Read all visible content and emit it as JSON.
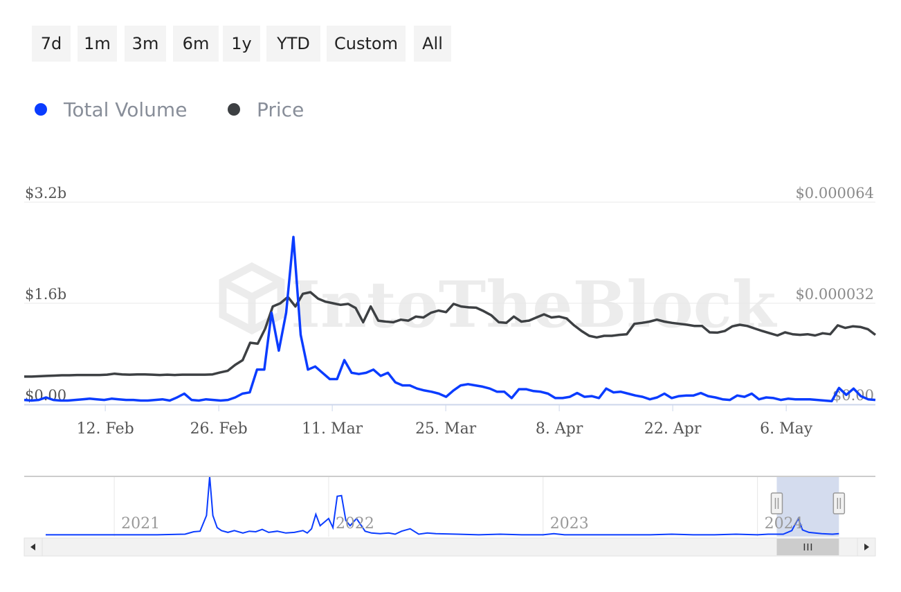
{
  "range_selector": {
    "buttons": [
      "7d",
      "1m",
      "3m",
      "6m",
      "1y",
      "YTD",
      "Custom",
      "All"
    ]
  },
  "legend": [
    {
      "label": "Total Volume",
      "color": "#0a3cff"
    },
    {
      "label": "Price",
      "color": "#3d4043"
    }
  ],
  "watermark": "IntoTheBlock",
  "colors": {
    "volume": "#0a3cff",
    "price": "#3d4043",
    "grid": "#e8e8e8",
    "axis_text": "#555555",
    "right_axis_text": "#8a8a8a",
    "navigator_mask": "#ccd6eb"
  },
  "chart_data": [
    {
      "type": "line",
      "title": "",
      "x": "daily dates, 2024-02-02 to 2024-05-17",
      "x_tick_labels": [
        "12. Feb",
        "26. Feb",
        "11. Mar",
        "25. Mar",
        "8. Apr",
        "22. Apr",
        "6. May"
      ],
      "x_tick_dates": [
        "2024-02-12",
        "2024-02-26",
        "2024-03-11",
        "2024-03-25",
        "2024-04-08",
        "2024-04-22",
        "2024-05-06"
      ],
      "x_range": [
        "2024-02-02",
        "2024-05-17"
      ],
      "y_left": {
        "tick_labels": [
          "$0.00",
          "$1.6b",
          "$3.2b"
        ],
        "range": [
          0,
          3.2
        ],
        "unit": "billion USD"
      },
      "y_right": {
        "tick_labels": [
          "$0.00",
          "$0.000032",
          "$0.000064"
        ],
        "range": [
          0,
          6.4e-05
        ]
      },
      "grid": true,
      "legend_placement": "top-left",
      "series": [
        {
          "name": "Total Volume",
          "axis": "left",
          "values": [
            0.07,
            0.06,
            0.07,
            0.11,
            0.07,
            0.06,
            0.06,
            0.07,
            0.08,
            0.09,
            0.08,
            0.07,
            0.09,
            0.08,
            0.07,
            0.07,
            0.06,
            0.06,
            0.07,
            0.08,
            0.06,
            0.11,
            0.17,
            0.07,
            0.06,
            0.08,
            0.07,
            0.06,
            0.07,
            0.11,
            0.17,
            0.19,
            0.55,
            0.55,
            1.45,
            0.85,
            1.45,
            2.65,
            1.1,
            0.55,
            0.6,
            0.5,
            0.4,
            0.4,
            0.7,
            0.5,
            0.48,
            0.5,
            0.55,
            0.45,
            0.5,
            0.35,
            0.3,
            0.3,
            0.25,
            0.22,
            0.2,
            0.17,
            0.12,
            0.22,
            0.3,
            0.32,
            0.3,
            0.28,
            0.25,
            0.2,
            0.2,
            0.1,
            0.24,
            0.24,
            0.21,
            0.2,
            0.17,
            0.1,
            0.1,
            0.12,
            0.18,
            0.12,
            0.13,
            0.1,
            0.25,
            0.19,
            0.2,
            0.17,
            0.14,
            0.12,
            0.08,
            0.11,
            0.17,
            0.1,
            0.13,
            0.14,
            0.14,
            0.18,
            0.13,
            0.11,
            0.08,
            0.07,
            0.14,
            0.12,
            0.17,
            0.08,
            0.11,
            0.1,
            0.07,
            0.09,
            0.08,
            0.08,
            0.08,
            0.07,
            0.06,
            0.05,
            0.26,
            0.15,
            0.25,
            0.13,
            0.08,
            0.07
          ]
        },
        {
          "name": "Price",
          "axis": "right",
          "values": [
            8.8e-06,
            8.8e-06,
            8.9e-06,
            9e-06,
            9.1e-06,
            9.2e-06,
            9.2e-06,
            9.3e-06,
            9.3e-06,
            9.3e-06,
            9.3e-06,
            9.4e-06,
            9.7e-06,
            9.5e-06,
            9.4e-06,
            9.5e-06,
            9.5e-06,
            9.4e-06,
            9.3e-06,
            9.4e-06,
            9.3e-06,
            9.4e-06,
            9.4e-06,
            9.4e-06,
            9.4e-06,
            9.5e-06,
            1.01e-05,
            1.06e-05,
            1.25e-05,
            1.4e-05,
            1.95e-05,
            1.92e-05,
            2.4e-05,
            3.1e-05,
            3.2e-05,
            3.4e-05,
            3.1e-05,
            3.5e-05,
            3.55e-05,
            3.35e-05,
            3.25e-05,
            3.2e-05,
            3.15e-05,
            3.18e-05,
            3.05e-05,
            2.6e-05,
            3.1e-05,
            2.65e-05,
            2.62e-05,
            2.6e-05,
            2.68e-05,
            2.65e-05,
            2.78e-05,
            2.75e-05,
            2.9e-05,
            2.97e-05,
            2.92e-05,
            3.18e-05,
            3.1e-05,
            3.07e-05,
            3.06e-05,
            2.95e-05,
            2.82e-05,
            2.6e-05,
            2.58e-05,
            2.78e-05,
            2.62e-05,
            2.65e-05,
            2.75e-05,
            2.85e-05,
            2.75e-05,
            2.78e-05,
            2.72e-05,
            2.5e-05,
            2.32e-05,
            2.17e-05,
            2.12e-05,
            2.17e-05,
            2.17e-05,
            2.2e-05,
            2.22e-05,
            2.55e-05,
            2.58e-05,
            2.62e-05,
            2.68e-05,
            2.62e-05,
            2.58e-05,
            2.55e-05,
            2.52e-05,
            2.48e-05,
            2.48e-05,
            2.28e-05,
            2.27e-05,
            2.32e-05,
            2.47e-05,
            2.52e-05,
            2.48e-05,
            2.4e-05,
            2.32e-05,
            2.25e-05,
            2.18e-05,
            2.28e-05,
            2.22e-05,
            2.2e-05,
            2.22e-05,
            2.18e-05,
            2.25e-05,
            2.22e-05,
            2.5e-05,
            2.42e-05,
            2.47e-05,
            2.45e-05,
            2.38e-05,
            2.2e-05
          ]
        }
      ]
    },
    {
      "type": "area",
      "role": "navigator",
      "x_tick_labels": [
        "2021",
        "2022",
        "2023",
        "2024"
      ],
      "x_range": [
        2020.58,
        2024.55
      ],
      "x_tick_years": [
        2021,
        2022,
        2023,
        2024
      ],
      "selected_range": [
        2024.09,
        2024.38
      ],
      "points": [
        [
          2020.68,
          0.03
        ],
        [
          2020.8,
          0.03
        ],
        [
          2020.9,
          0.03
        ],
        [
          2021.0,
          0.03
        ],
        [
          2021.1,
          0.03
        ],
        [
          2021.2,
          0.03
        ],
        [
          2021.33,
          0.04
        ],
        [
          2021.37,
          0.08
        ],
        [
          2021.4,
          0.09
        ],
        [
          2021.43,
          0.35
        ],
        [
          2021.445,
          1.0
        ],
        [
          2021.46,
          0.35
        ],
        [
          2021.48,
          0.15
        ],
        [
          2021.5,
          0.1
        ],
        [
          2021.53,
          0.07
        ],
        [
          2021.56,
          0.1
        ],
        [
          2021.6,
          0.06
        ],
        [
          2021.63,
          0.09
        ],
        [
          2021.66,
          0.08
        ],
        [
          2021.69,
          0.12
        ],
        [
          2021.72,
          0.07
        ],
        [
          2021.76,
          0.09
        ],
        [
          2021.8,
          0.06
        ],
        [
          2021.84,
          0.07
        ],
        [
          2021.88,
          0.1
        ],
        [
          2021.9,
          0.06
        ],
        [
          2021.92,
          0.13
        ],
        [
          2021.94,
          0.37
        ],
        [
          2021.96,
          0.18
        ],
        [
          2022.0,
          0.3
        ],
        [
          2022.02,
          0.15
        ],
        [
          2022.04,
          0.67
        ],
        [
          2022.06,
          0.68
        ],
        [
          2022.08,
          0.27
        ],
        [
          2022.1,
          0.18
        ],
        [
          2022.13,
          0.3
        ],
        [
          2022.17,
          0.09
        ],
        [
          2022.2,
          0.06
        ],
        [
          2022.24,
          0.05
        ],
        [
          2022.28,
          0.06
        ],
        [
          2022.31,
          0.04
        ],
        [
          2022.34,
          0.09
        ],
        [
          2022.38,
          0.13
        ],
        [
          2022.42,
          0.04
        ],
        [
          2022.46,
          0.06
        ],
        [
          2022.5,
          0.05
        ],
        [
          2022.6,
          0.04
        ],
        [
          2022.7,
          0.03
        ],
        [
          2022.8,
          0.04
        ],
        [
          2022.9,
          0.03
        ],
        [
          2023.0,
          0.03
        ],
        [
          2023.05,
          0.05
        ],
        [
          2023.1,
          0.03
        ],
        [
          2023.2,
          0.03
        ],
        [
          2023.3,
          0.03
        ],
        [
          2023.4,
          0.03
        ],
        [
          2023.5,
          0.03
        ],
        [
          2023.6,
          0.04
        ],
        [
          2023.7,
          0.03
        ],
        [
          2023.8,
          0.03
        ],
        [
          2023.9,
          0.04
        ],
        [
          2024.0,
          0.03
        ],
        [
          2024.05,
          0.04
        ],
        [
          2024.12,
          0.04
        ],
        [
          2024.16,
          0.1
        ],
        [
          2024.19,
          0.3
        ],
        [
          2024.21,
          0.11
        ],
        [
          2024.24,
          0.07
        ],
        [
          2024.3,
          0.05
        ],
        [
          2024.35,
          0.04
        ],
        [
          2024.38,
          0.05
        ]
      ]
    }
  ]
}
